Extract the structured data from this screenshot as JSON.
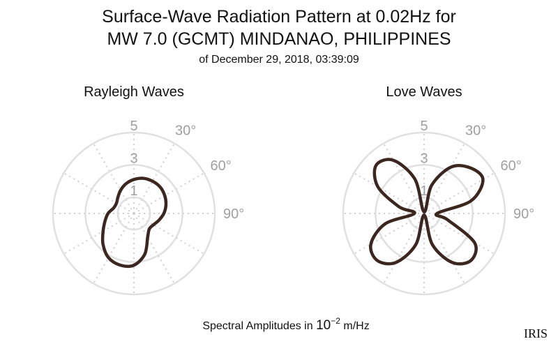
{
  "title": [
    "Surface-Wave Radiation Pattern at 0.02Hz for",
    "MW 7.0 (GCMT) MINDANAO, PHILIPPINES"
  ],
  "subtitle": "of December 29, 2018, 03:39:09",
  "footer": {
    "text": "Spectral Amplitudes in",
    "base": "10",
    "exponent": "−2",
    "unit": "m/Hz"
  },
  "logo": "IRIS",
  "chart_data": [
    {
      "type": "polar",
      "title": "Rayleigh Waves",
      "color": "#3b2720",
      "x": [
        0,
        15,
        30,
        45,
        60,
        75,
        90,
        105,
        120,
        135,
        150,
        165,
        180,
        195,
        210,
        225,
        240,
        255,
        270,
        285,
        300,
        315,
        330,
        345
      ],
      "values": [
        2.1,
        2.25,
        2.3,
        2.3,
        2.2,
        2.05,
        1.85,
        1.6,
        1.4,
        1.35,
        1.7,
        2.6,
        3.2,
        3.3,
        3.15,
        2.7,
        2.2,
        1.85,
        1.6,
        1.3,
        1.25,
        1.4,
        1.65,
        1.9
      ],
      "ylim": [
        0,
        5
      ],
      "yticks": [
        1,
        3,
        5
      ],
      "xticks": [
        {
          "value": 30,
          "label": "30°"
        },
        {
          "value": 60,
          "label": "60°"
        },
        {
          "value": 90,
          "label": "90°"
        }
      ]
    },
    {
      "type": "polar",
      "title": "Love Waves",
      "color": "#3b2720",
      "x": [
        0,
        15,
        30,
        45,
        60,
        75,
        90,
        105,
        120,
        135,
        150,
        165,
        180,
        195,
        210,
        225,
        240,
        255,
        270,
        285,
        300,
        315,
        330,
        345
      ],
      "values": [
        0.1,
        1.8,
        3.3,
        4.0,
        4.2,
        3.0,
        0.8,
        1.5,
        3.6,
        4.1,
        3.5,
        2.0,
        0.1,
        2.0,
        3.5,
        4.1,
        3.8,
        2.5,
        0.6,
        1.6,
        3.3,
        4.2,
        3.8,
        2.2
      ],
      "ylim": [
        0,
        5
      ],
      "yticks": [
        1,
        3,
        5
      ],
      "xticks": [
        {
          "value": 30,
          "label": "30°"
        },
        {
          "value": 60,
          "label": "60°"
        },
        {
          "value": 90,
          "label": "90°"
        }
      ]
    }
  ]
}
